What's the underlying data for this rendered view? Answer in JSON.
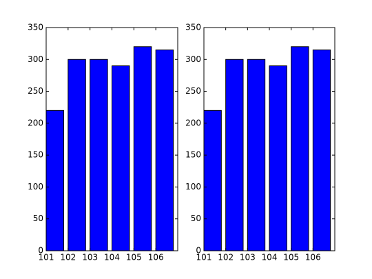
{
  "chart_data": [
    {
      "type": "bar",
      "x": [
        101,
        102,
        103,
        104,
        105,
        106
      ],
      "values": [
        220,
        300,
        300,
        290,
        320,
        315
      ],
      "color": "#0000ff",
      "xlim": [
        101,
        107
      ],
      "xticks": [
        101,
        102,
        103,
        104,
        105,
        106
      ],
      "ylim": [
        0,
        350
      ],
      "yticks": [
        0,
        50,
        100,
        150,
        200,
        250,
        300,
        350
      ]
    },
    {
      "type": "bar",
      "x": [
        101,
        102,
        103,
        104,
        105,
        106
      ],
      "values": [
        220,
        300,
        300,
        290,
        320,
        315
      ],
      "color": "#0000ff",
      "xlim": [
        101,
        107
      ],
      "xticks": [
        101,
        102,
        103,
        104,
        105,
        106
      ],
      "ylim": [
        0,
        350
      ],
      "yticks": [
        0,
        50,
        100,
        150,
        200,
        250,
        300,
        350
      ]
    }
  ]
}
